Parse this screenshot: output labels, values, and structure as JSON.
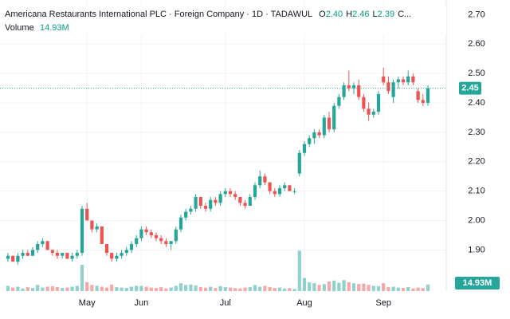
{
  "chart_data": {
    "type": "candlestick",
    "title": "Americana Restaurants International PLC · Foreign Company · 1D · TADAWUL",
    "ohlc_prefixes": {
      "open": "O",
      "high": "H",
      "low": "L",
      "close": "C..."
    },
    "last_ohlc_labels": {
      "open": "2.40",
      "high": "2.46",
      "low": "2.39"
    },
    "volume_title": "Volume",
    "last_volume_label": "14.93M",
    "up_color": "#26a69a",
    "down_color": "#ef5350",
    "categories": [
      null,
      null,
      null,
      null,
      null,
      null,
      null,
      null,
      null,
      null,
      null,
      null,
      null,
      null,
      null,
      null,
      "May",
      null,
      null,
      null,
      null,
      null,
      null,
      null,
      null,
      null,
      null,
      "Jun",
      null,
      null,
      null,
      null,
      null,
      null,
      null,
      null,
      null,
      null,
      null,
      null,
      null,
      null,
      null,
      null,
      "Jul",
      null,
      null,
      null,
      null,
      null,
      null,
      null,
      null,
      null,
      null,
      null,
      null,
      null,
      null,
      null,
      "Aug",
      null,
      null,
      null,
      null,
      null,
      null,
      null,
      null,
      null,
      null,
      null,
      null,
      null,
      null,
      null,
      "Sep",
      null,
      null,
      null,
      null,
      null,
      null,
      null,
      null,
      null
    ],
    "open": [
      1.87,
      1.88,
      1.86,
      1.88,
      1.89,
      1.88,
      1.9,
      1.92,
      1.93,
      1.9,
      1.89,
      1.88,
      1.89,
      1.87,
      1.88,
      1.89,
      2.04,
      2.0,
      1.97,
      1.98,
      1.92,
      1.89,
      1.87,
      1.88,
      1.89,
      1.9,
      1.92,
      1.94,
      1.97,
      1.96,
      1.95,
      1.94,
      1.93,
      1.92,
      1.93,
      1.97,
      2.01,
      2.03,
      2.04,
      2.08,
      2.05,
      2.04,
      2.07,
      2.06,
      2.09,
      2.1,
      2.09,
      2.08,
      2.06,
      2.05,
      2.08,
      2.12,
      2.15,
      2.13,
      2.1,
      2.09,
      2.11,
      2.12,
      2.1,
      2.16,
      2.23,
      2.26,
      2.28,
      2.3,
      2.29,
      2.35,
      2.31,
      2.39,
      2.42,
      2.46,
      2.45,
      2.46,
      2.42,
      2.38,
      2.36,
      2.37,
      2.49,
      2.47,
      2.42,
      2.47,
      2.48,
      2.47,
      2.49,
      2.44,
      2.41,
      2.4
    ],
    "high": [
      1.89,
      1.88,
      1.89,
      1.9,
      1.9,
      1.91,
      1.93,
      1.94,
      1.93,
      1.9,
      1.9,
      1.89,
      1.89,
      1.89,
      1.9,
      2.05,
      2.06,
      2.0,
      1.99,
      1.98,
      1.92,
      1.89,
      1.89,
      1.9,
      1.91,
      1.93,
      1.95,
      1.98,
      1.98,
      1.97,
      1.96,
      1.95,
      1.94,
      1.93,
      1.98,
      2.02,
      2.04,
      2.05,
      2.09,
      2.08,
      2.06,
      2.08,
      2.08,
      2.1,
      2.11,
      2.11,
      2.1,
      2.08,
      2.07,
      2.09,
      2.13,
      2.17,
      2.16,
      2.13,
      2.11,
      2.12,
      2.13,
      2.12,
      2.11,
      2.24,
      2.27,
      2.29,
      2.31,
      2.31,
      2.36,
      2.37,
      2.4,
      2.43,
      2.47,
      2.51,
      2.47,
      2.48,
      2.43,
      2.4,
      2.38,
      2.44,
      2.52,
      2.49,
      2.48,
      2.49,
      2.49,
      2.51,
      2.5,
      2.45,
      2.43,
      2.46
    ],
    "low": [
      1.86,
      1.86,
      1.85,
      1.87,
      1.88,
      1.88,
      1.89,
      1.91,
      1.9,
      1.88,
      1.87,
      1.87,
      1.87,
      1.86,
      1.87,
      1.88,
      2.0,
      1.96,
      1.96,
      1.92,
      1.88,
      1.86,
      1.86,
      1.87,
      1.88,
      1.89,
      1.91,
      1.93,
      1.95,
      1.94,
      1.93,
      1.92,
      1.91,
      1.9,
      1.92,
      1.96,
      2.0,
      2.02,
      2.03,
      2.04,
      2.03,
      2.03,
      2.05,
      2.05,
      2.08,
      2.08,
      2.07,
      2.05,
      2.04,
      2.05,
      2.07,
      2.11,
      2.12,
      2.09,
      2.08,
      2.08,
      2.1,
      2.1,
      2.09,
      2.15,
      2.22,
      2.25,
      2.26,
      2.28,
      2.28,
      2.3,
      2.3,
      2.38,
      2.41,
      2.44,
      2.43,
      2.41,
      2.37,
      2.34,
      2.35,
      2.36,
      2.46,
      2.43,
      2.4,
      2.45,
      2.46,
      2.46,
      2.46,
      2.4,
      2.39,
      2.39
    ],
    "close": [
      1.88,
      1.86,
      1.88,
      1.89,
      1.88,
      1.9,
      1.92,
      1.93,
      1.9,
      1.89,
      1.88,
      1.89,
      1.87,
      1.88,
      1.89,
      2.04,
      2.0,
      1.97,
      1.98,
      1.92,
      1.89,
      1.87,
      1.88,
      1.89,
      1.9,
      1.92,
      1.94,
      1.97,
      1.96,
      1.95,
      1.94,
      1.93,
      1.92,
      1.93,
      1.97,
      2.01,
      2.03,
      2.04,
      2.08,
      2.05,
      2.04,
      2.07,
      2.06,
      2.09,
      2.1,
      2.09,
      2.08,
      2.06,
      2.05,
      2.08,
      2.12,
      2.15,
      2.13,
      2.1,
      2.09,
      2.11,
      2.12,
      2.1,
      2.1,
      2.23,
      2.26,
      2.28,
      2.3,
      2.29,
      2.35,
      2.31,
      2.39,
      2.42,
      2.46,
      2.45,
      2.46,
      2.42,
      2.38,
      2.36,
      2.37,
      2.43,
      2.47,
      2.44,
      2.47,
      2.48,
      2.47,
      2.49,
      2.47,
      2.41,
      2.4,
      2.45
    ],
    "volume": [
      12,
      8,
      10,
      6,
      9,
      7,
      14,
      8,
      10,
      11,
      9,
      7,
      8,
      10,
      12,
      60,
      20,
      14,
      12,
      10,
      8,
      15,
      9,
      8,
      7,
      10,
      12,
      12,
      10,
      8,
      7,
      9,
      6,
      8,
      12,
      18,
      14,
      15,
      13,
      9,
      8,
      10,
      7,
      11,
      9,
      8,
      7,
      6,
      8,
      9,
      14,
      10,
      12,
      9,
      7,
      8,
      6,
      7,
      5,
      92,
      30,
      20,
      18,
      14,
      16,
      22,
      24,
      19,
      25,
      20,
      18,
      16,
      17,
      14,
      12,
      11,
      18,
      9,
      10,
      8,
      7,
      9,
      6,
      8,
      7,
      14.93
    ],
    "ylim": [
      1.76,
      2.75
    ],
    "yticks": [
      {
        "value": 1.9,
        "label": "1.90"
      },
      {
        "value": 2.0,
        "label": "2.00"
      },
      {
        "value": 2.1,
        "label": "2.10"
      },
      {
        "value": 2.2,
        "label": "2.20"
      },
      {
        "value": 2.3,
        "label": "2.30"
      },
      {
        "value": 2.4,
        "label": "2.40"
      },
      {
        "value": 2.5,
        "label": "2.50"
      },
      {
        "value": 2.6,
        "label": "2.60"
      },
      {
        "value": 2.7,
        "label": "2.70"
      }
    ],
    "volume_lim": [
      0,
      100
    ],
    "grid": true
  }
}
